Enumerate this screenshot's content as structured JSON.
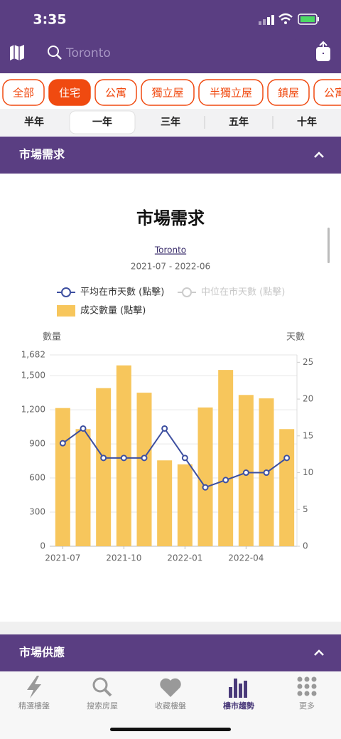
{
  "status_bar": {
    "time": "3:35"
  },
  "search": {
    "placeholder": "Toronto"
  },
  "property_types": {
    "items": [
      "全部",
      "住宅",
      "公寓",
      "獨立屋",
      "半獨立屋",
      "鎮屋",
      "公寓"
    ],
    "selected": 1
  },
  "periods": {
    "items": [
      "半年",
      "一年",
      "三年",
      "五年",
      "十年"
    ],
    "selected": 1
  },
  "section_1": {
    "title": "市場需求"
  },
  "chart_data": {
    "type": "bar",
    "title": "市場需求",
    "subtitle": "Toronto",
    "date_range": "2021-07 - 2022-06",
    "y_label": "數量",
    "y2_label": "天數",
    "categories": [
      "2021-07",
      null,
      null,
      "2021-10",
      null,
      null,
      "2022-01",
      null,
      null,
      "2022-04",
      null,
      null
    ],
    "series": [
      {
        "name": "成交數量 (點擊)",
        "type": "bar",
        "color": "#f7c65c",
        "axis": "y",
        "values": [
          1215,
          1030,
          1390,
          1590,
          1350,
          755,
          720,
          1220,
          1550,
          1330,
          1300,
          1030
        ]
      },
      {
        "name": "平均在市天數 (點擊)",
        "type": "line",
        "color": "#3d4fa0",
        "axis": "y2",
        "values": [
          14,
          16,
          12,
          12,
          12,
          16,
          12,
          8,
          9,
          10,
          10,
          12
        ]
      },
      {
        "name": "中位在市天數 (點擊)",
        "type": "line",
        "color": "#cccccc",
        "axis": "y2",
        "hidden": true
      }
    ],
    "ylim": [
      0,
      1682
    ],
    "yticks": [
      0,
      300,
      600,
      900,
      {
        "value": 1200,
        "label": "1,200"
      },
      {
        "value": 1500,
        "label": "1,500"
      },
      {
        "value": 1682,
        "label": "1,682"
      }
    ],
    "y2lim": [
      0,
      26
    ],
    "y2ticks": [
      0,
      5,
      10,
      15,
      20,
      25
    ],
    "grid": true
  },
  "section_2": {
    "title": "市場供應"
  },
  "tab_bar": {
    "items": [
      "精選樓盤",
      "搜索房屋",
      "收藏樓盤",
      "樓市趨勢",
      "更多"
    ],
    "selected": 3
  }
}
